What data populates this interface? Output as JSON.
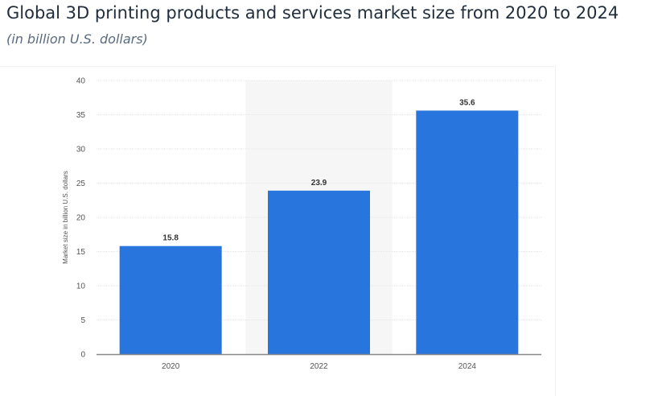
{
  "title": "Global 3D printing products and services market size from 2020 to 2024",
  "subtitle": "(in billion U.S. dollars)",
  "chart_data": {
    "type": "bar",
    "title": "Global 3D printing products and services market size from 2020 to 2024",
    "subtitle": "(in billion U.S. dollars)",
    "categories": [
      "2020",
      "2022",
      "2024"
    ],
    "values": [
      15.8,
      23.9,
      35.6
    ],
    "data_labels": [
      "15.8",
      "23.9",
      "35.6"
    ],
    "xlabel": "",
    "ylabel": "Market size in billion U.S. dollars",
    "ylim": [
      0,
      40
    ],
    "yticks": [
      "0",
      "5",
      "10",
      "15",
      "20",
      "25",
      "30",
      "35",
      "40"
    ],
    "grid": true,
    "highlighted_category": "2022",
    "bar_color": "#2876dd"
  }
}
